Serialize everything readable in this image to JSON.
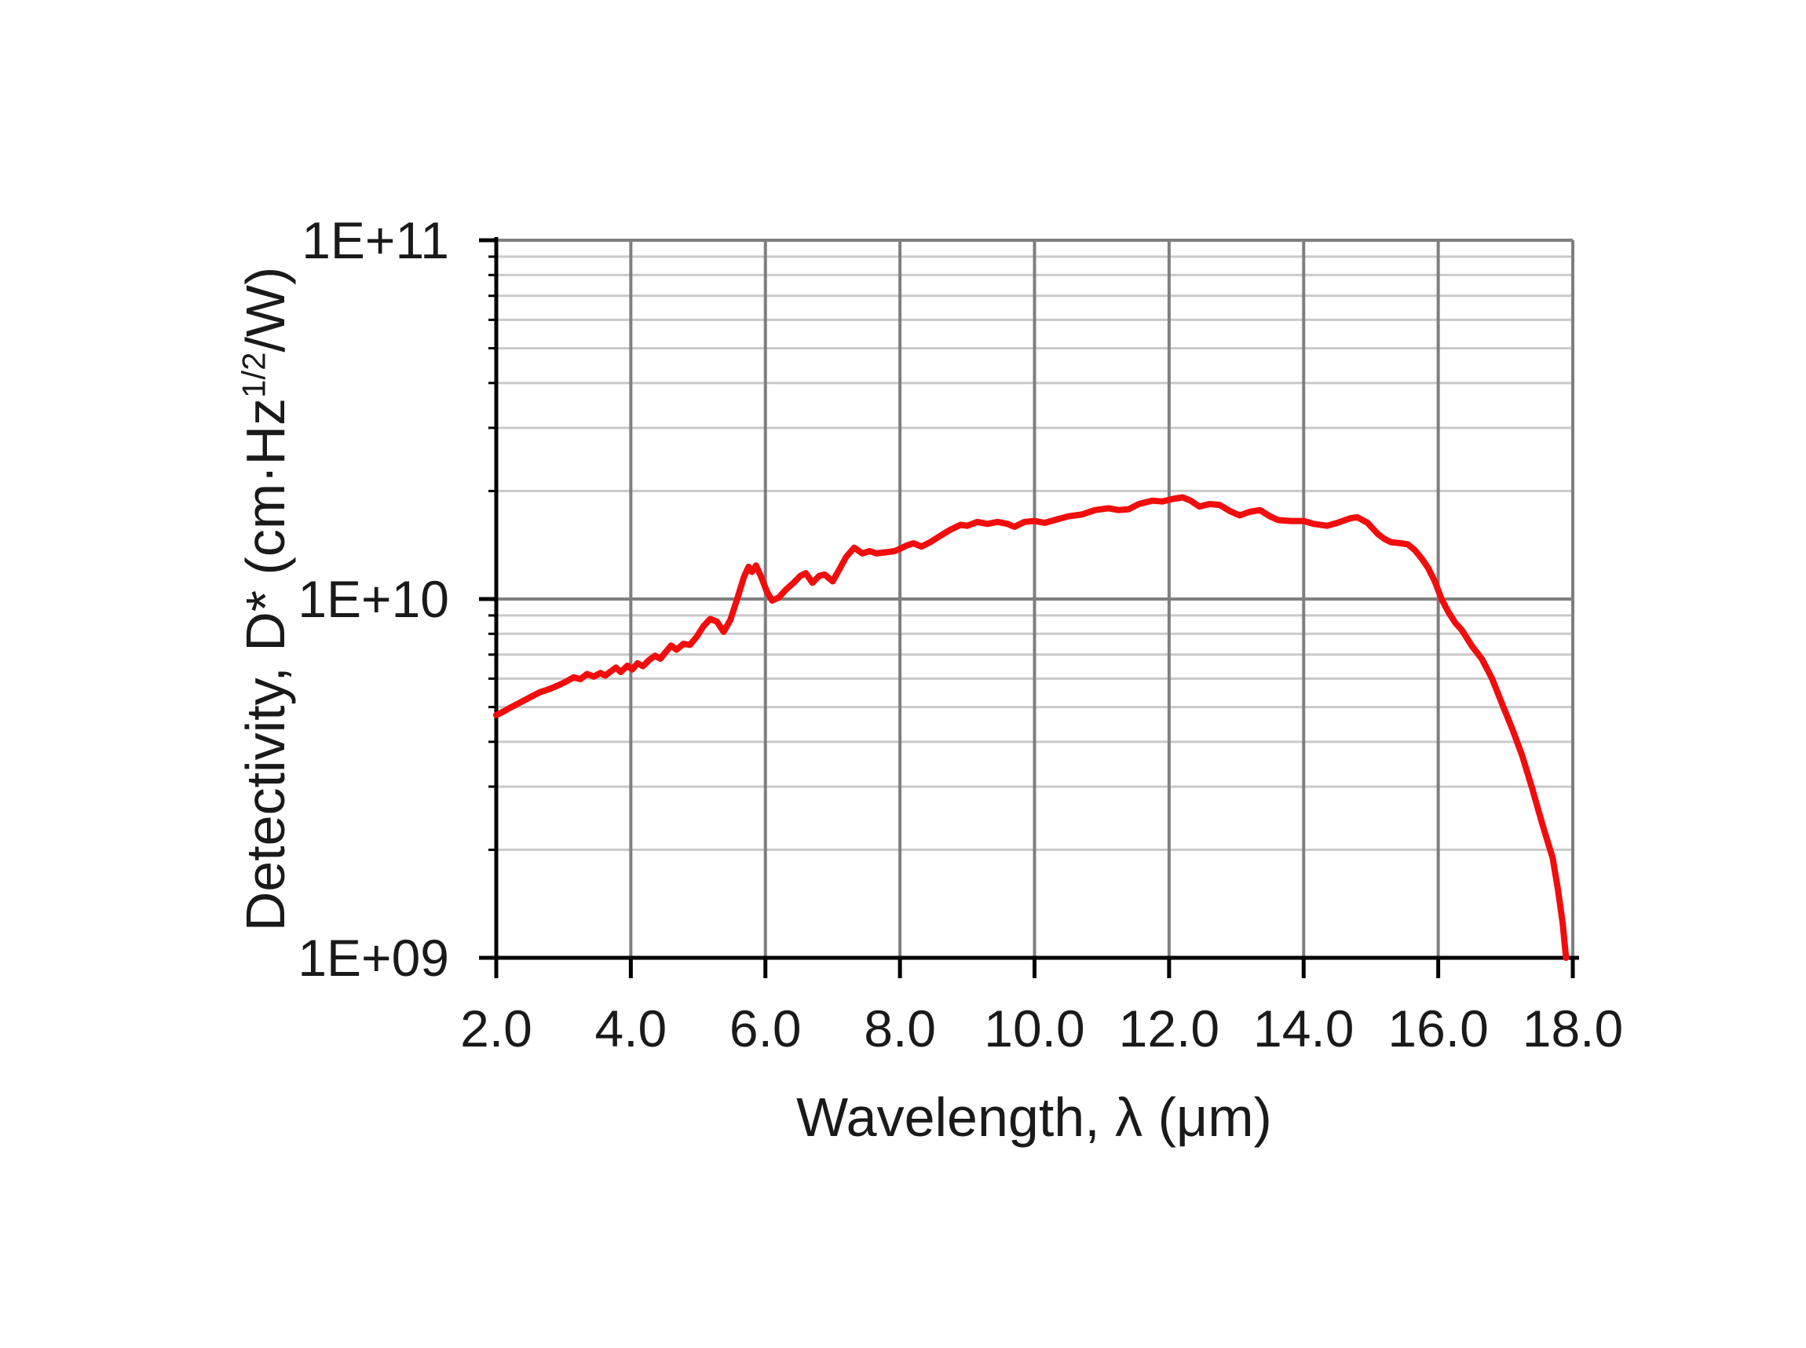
{
  "figure": {
    "background": "#ffffff",
    "x_axis": {
      "title": "Wavelength, λ (μm)",
      "tick_labels": [
        "2.0",
        "4.0",
        "6.0",
        "8.0",
        "10.0",
        "12.0",
        "14.0",
        "16.0",
        "18.0"
      ],
      "tick_values": [
        2,
        4,
        6,
        8,
        10,
        12,
        14,
        16,
        18
      ]
    },
    "y_axis": {
      "title_prefix": "Detectivity, D* (cm·Hz",
      "title_sup": "1/2",
      "title_suffix": "/W)",
      "tick_labels": [
        "1E+11",
        "1E+10",
        "1E+09"
      ],
      "tick_values": [
        100000000000.0,
        10000000000.0,
        1000000000.0
      ],
      "scale": "log"
    },
    "colors": {
      "curve": "#f20d0d",
      "grid_major": "#7f7f7f",
      "grid_minor": "#c9c9c9",
      "axis": "#000000",
      "text": "#1a1a1a"
    }
  },
  "chart_data": {
    "type": "line",
    "title": "",
    "xlabel": "Wavelength, λ (μm)",
    "ylabel": "Detectivity, D* (cm·Hz1/2/W)",
    "x_range": [
      2,
      18
    ],
    "y_range": [
      1000000000.0,
      100000000000.0
    ],
    "y_scale": "log",
    "grid": "major+minor",
    "legend": "none",
    "series": [
      {
        "name": "D*",
        "color": "#f20d0d",
        "points": [
          [
            2.0,
            4750000000.0
          ],
          [
            2.1,
            4850000000.0
          ],
          [
            2.2,
            4970000000.0
          ],
          [
            2.35,
            5140000000.0
          ],
          [
            2.5,
            5320000000.0
          ],
          [
            2.65,
            5500000000.0
          ],
          [
            2.8,
            5620000000.0
          ],
          [
            2.95,
            5780000000.0
          ],
          [
            3.05,
            5900000000.0
          ],
          [
            3.15,
            6050000000.0
          ],
          [
            3.25,
            5980000000.0
          ],
          [
            3.35,
            6180000000.0
          ],
          [
            3.45,
            6080000000.0
          ],
          [
            3.55,
            6220000000.0
          ],
          [
            3.62,
            6120000000.0
          ],
          [
            3.7,
            6280000000.0
          ],
          [
            3.78,
            6440000000.0
          ],
          [
            3.85,
            6260000000.0
          ],
          [
            3.95,
            6520000000.0
          ],
          [
            4.02,
            6360000000.0
          ],
          [
            4.1,
            6620000000.0
          ],
          [
            4.18,
            6500000000.0
          ],
          [
            4.28,
            6780000000.0
          ],
          [
            4.36,
            6950000000.0
          ],
          [
            4.44,
            6820000000.0
          ],
          [
            4.52,
            7120000000.0
          ],
          [
            4.6,
            7420000000.0
          ],
          [
            4.68,
            7220000000.0
          ],
          [
            4.78,
            7500000000.0
          ],
          [
            4.88,
            7450000000.0
          ],
          [
            4.98,
            7850000000.0
          ],
          [
            5.08,
            8400000000.0
          ],
          [
            5.18,
            8800000000.0
          ],
          [
            5.28,
            8650000000.0
          ],
          [
            5.38,
            8100000000.0
          ],
          [
            5.48,
            8750000000.0
          ],
          [
            5.58,
            10000000000.0
          ],
          [
            5.68,
            11500000000.0
          ],
          [
            5.75,
            12300000000.0
          ],
          [
            5.8,
            11900000000.0
          ],
          [
            5.86,
            12400000000.0
          ],
          [
            5.94,
            11500000000.0
          ],
          [
            6.02,
            10500000000.0
          ],
          [
            6.1,
            9900000000.0
          ],
          [
            6.2,
            10100000000.0
          ],
          [
            6.3,
            10600000000.0
          ],
          [
            6.42,
            11100000000.0
          ],
          [
            6.52,
            11600000000.0
          ],
          [
            6.6,
            11800000000.0
          ],
          [
            6.7,
            11100000000.0
          ],
          [
            6.8,
            11600000000.0
          ],
          [
            6.88,
            11700000000.0
          ],
          [
            7.0,
            11200000000.0
          ],
          [
            7.1,
            12100000000.0
          ],
          [
            7.2,
            13100000000.0
          ],
          [
            7.32,
            13900000000.0
          ],
          [
            7.44,
            13400000000.0
          ],
          [
            7.55,
            13600000000.0
          ],
          [
            7.65,
            13400000000.0
          ],
          [
            7.8,
            13500000000.0
          ],
          [
            7.92,
            13600000000.0
          ],
          [
            8.0,
            13800000000.0
          ],
          [
            8.1,
            14100000000.0
          ],
          [
            8.2,
            14300000000.0
          ],
          [
            8.32,
            14000000000.0
          ],
          [
            8.45,
            14400000000.0
          ],
          [
            8.6,
            15000000000.0
          ],
          [
            8.75,
            15600000000.0
          ],
          [
            8.9,
            16100000000.0
          ],
          [
            9.0,
            16000000000.0
          ],
          [
            9.15,
            16400000000.0
          ],
          [
            9.3,
            16200000000.0
          ],
          [
            9.45,
            16400000000.0
          ],
          [
            9.6,
            16200000000.0
          ],
          [
            9.7,
            15900000000.0
          ],
          [
            9.85,
            16400000000.0
          ],
          [
            10.0,
            16500000000.0
          ],
          [
            10.15,
            16300000000.0
          ],
          [
            10.3,
            16600000000.0
          ],
          [
            10.5,
            17000000000.0
          ],
          [
            10.7,
            17200000000.0
          ],
          [
            10.9,
            17700000000.0
          ],
          [
            11.1,
            17900000000.0
          ],
          [
            11.25,
            17700000000.0
          ],
          [
            11.4,
            17800000000.0
          ],
          [
            11.55,
            18400000000.0
          ],
          [
            11.75,
            18800000000.0
          ],
          [
            11.9,
            18700000000.0
          ],
          [
            12.05,
            19000000000.0
          ],
          [
            12.2,
            19200000000.0
          ],
          [
            12.32,
            18800000000.0
          ],
          [
            12.45,
            18100000000.0
          ],
          [
            12.6,
            18400000000.0
          ],
          [
            12.75,
            18300000000.0
          ],
          [
            12.9,
            17600000000.0
          ],
          [
            13.05,
            17100000000.0
          ],
          [
            13.2,
            17500000000.0
          ],
          [
            13.35,
            17700000000.0
          ],
          [
            13.5,
            17000000000.0
          ],
          [
            13.62,
            16600000000.0
          ],
          [
            13.8,
            16500000000.0
          ],
          [
            14.0,
            16500000000.0
          ],
          [
            14.15,
            16200000000.0
          ],
          [
            14.35,
            16000000000.0
          ],
          [
            14.5,
            16300000000.0
          ],
          [
            14.7,
            16800000000.0
          ],
          [
            14.8,
            16900000000.0
          ],
          [
            14.95,
            16300000000.0
          ],
          [
            15.1,
            15200000000.0
          ],
          [
            15.2,
            14700000000.0
          ],
          [
            15.3,
            14400000000.0
          ],
          [
            15.45,
            14300000000.0
          ],
          [
            15.55,
            14200000000.0
          ],
          [
            15.65,
            13700000000.0
          ],
          [
            15.75,
            13000000000.0
          ],
          [
            15.85,
            12200000000.0
          ],
          [
            15.95,
            11200000000.0
          ],
          [
            16.05,
            10000000000.0
          ],
          [
            16.15,
            9200000000.0
          ],
          [
            16.25,
            8600000000.0
          ],
          [
            16.35,
            8200000000.0
          ],
          [
            16.5,
            7400000000.0
          ],
          [
            16.65,
            6800000000.0
          ],
          [
            16.8,
            6000000000.0
          ],
          [
            16.95,
            5100000000.0
          ],
          [
            17.1,
            4350000000.0
          ],
          [
            17.25,
            3650000000.0
          ],
          [
            17.4,
            2950000000.0
          ],
          [
            17.55,
            2350000000.0
          ],
          [
            17.7,
            1900000000.0
          ],
          [
            17.78,
            1550000000.0
          ],
          [
            17.85,
            1250000000.0
          ],
          [
            17.9,
            1000000000.0
          ]
        ]
      }
    ]
  }
}
